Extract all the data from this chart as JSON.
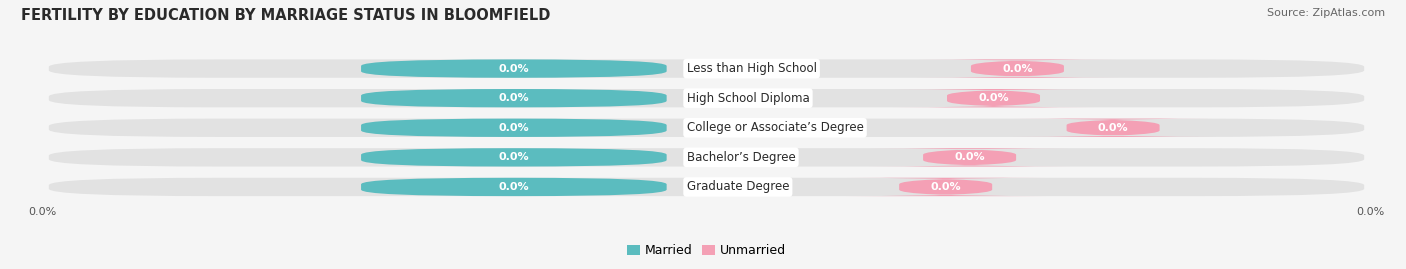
{
  "title": "FERTILITY BY EDUCATION BY MARRIAGE STATUS IN BLOOMFIELD",
  "source": "Source: ZipAtlas.com",
  "categories": [
    "Less than High School",
    "High School Diploma",
    "College or Associate’s Degree",
    "Bachelor’s Degree",
    "Graduate Degree"
  ],
  "married_values": [
    "0.0%",
    "0.0%",
    "0.0%",
    "0.0%",
    "0.0%"
  ],
  "unmarried_values": [
    "0.0%",
    "0.0%",
    "0.0%",
    "0.0%",
    "0.0%"
  ],
  "married_color": "#5bbcbf",
  "unmarried_color": "#f4a0b5",
  "bar_bg_color": "#e2e2e2",
  "figsize": [
    14.06,
    2.69
  ],
  "dpi": 100,
  "title_fontsize": 10.5,
  "source_fontsize": 8,
  "label_fontsize": 8.5,
  "value_fontsize": 8,
  "legend_fontsize": 9,
  "background_color": "#f5f5f5",
  "axis_tick_fontsize": 8
}
